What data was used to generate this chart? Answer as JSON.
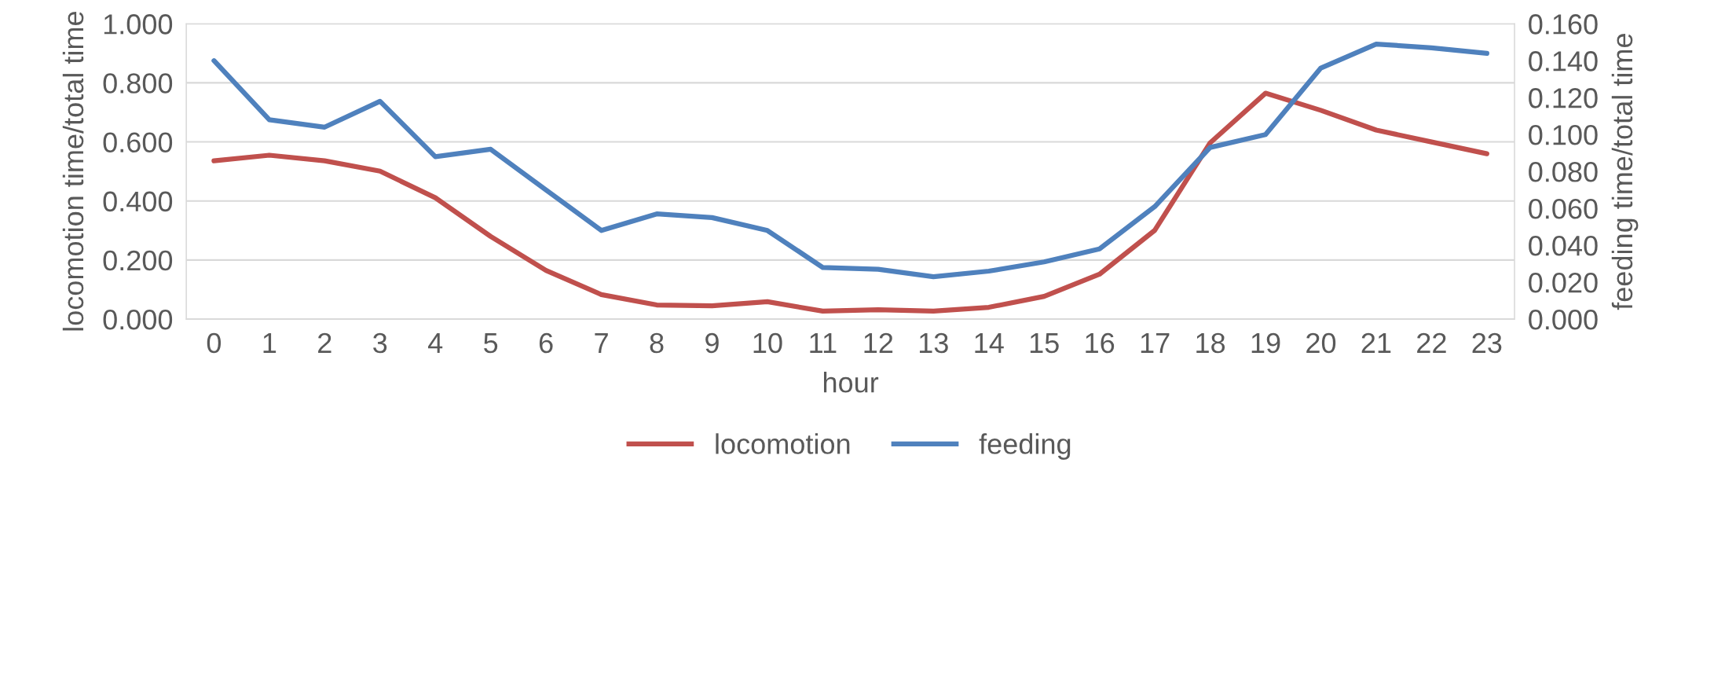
{
  "chart_data": {
    "type": "line",
    "xlabel": "hour",
    "ylabel": "locomotion time/total time",
    "y2label": "feeding time/total time",
    "categories": [
      "0",
      "1",
      "2",
      "3",
      "4",
      "5",
      "6",
      "7",
      "8",
      "9",
      "10",
      "11",
      "12",
      "13",
      "14",
      "15",
      "16",
      "17",
      "18",
      "19",
      "20",
      "21",
      "22",
      "23"
    ],
    "series": [
      {
        "name": "locomotion",
        "color": "#c0504d",
        "values": [
          0.536,
          0.555,
          0.536,
          0.501,
          0.411,
          0.28,
          0.165,
          0.083,
          0.048,
          0.045,
          0.059,
          0.027,
          0.032,
          0.027,
          0.04,
          0.077,
          0.152,
          0.301,
          0.597,
          0.765,
          0.707,
          0.64,
          0.6,
          0.56
        ]
      },
      {
        "name": "feeding",
        "color": "#4f81bd",
        "axis": "y2",
        "values": [
          0.14,
          0.108,
          0.104,
          0.118,
          0.088,
          0.092,
          0.07,
          0.048,
          0.057,
          0.055,
          0.048,
          0.028,
          0.027,
          0.023,
          0.026,
          0.031,
          0.038,
          0.061,
          0.093,
          0.1,
          0.136,
          0.149,
          0.147,
          0.144
        ]
      }
    ],
    "ylim": [
      0,
      1
    ],
    "yticks": [
      {
        "value": 0,
        "label": "0.000"
      },
      {
        "value": 0.2,
        "label": "0.200"
      },
      {
        "value": 0.4,
        "label": "0.400"
      },
      {
        "value": 0.6,
        "label": "0.600"
      },
      {
        "value": 0.8,
        "label": "0.800"
      },
      {
        "value": 1,
        "label": "1.000"
      }
    ],
    "y2lim": [
      0,
      0.16
    ],
    "y2ticks": [
      {
        "value": 0,
        "label": "0.000"
      },
      {
        "value": 0.02,
        "label": "0.020"
      },
      {
        "value": 0.04,
        "label": "0.040"
      },
      {
        "value": 0.06,
        "label": "0.060"
      },
      {
        "value": 0.08,
        "label": "0.080"
      },
      {
        "value": 0.1,
        "label": "0.100"
      },
      {
        "value": 0.12,
        "label": "0.120"
      },
      {
        "value": 0.14,
        "label": "0.140"
      },
      {
        "value": 0.16,
        "label": "0.160"
      }
    ],
    "grid": "y",
    "legend": "bottom",
    "marker": "none",
    "line_style": "solid"
  }
}
